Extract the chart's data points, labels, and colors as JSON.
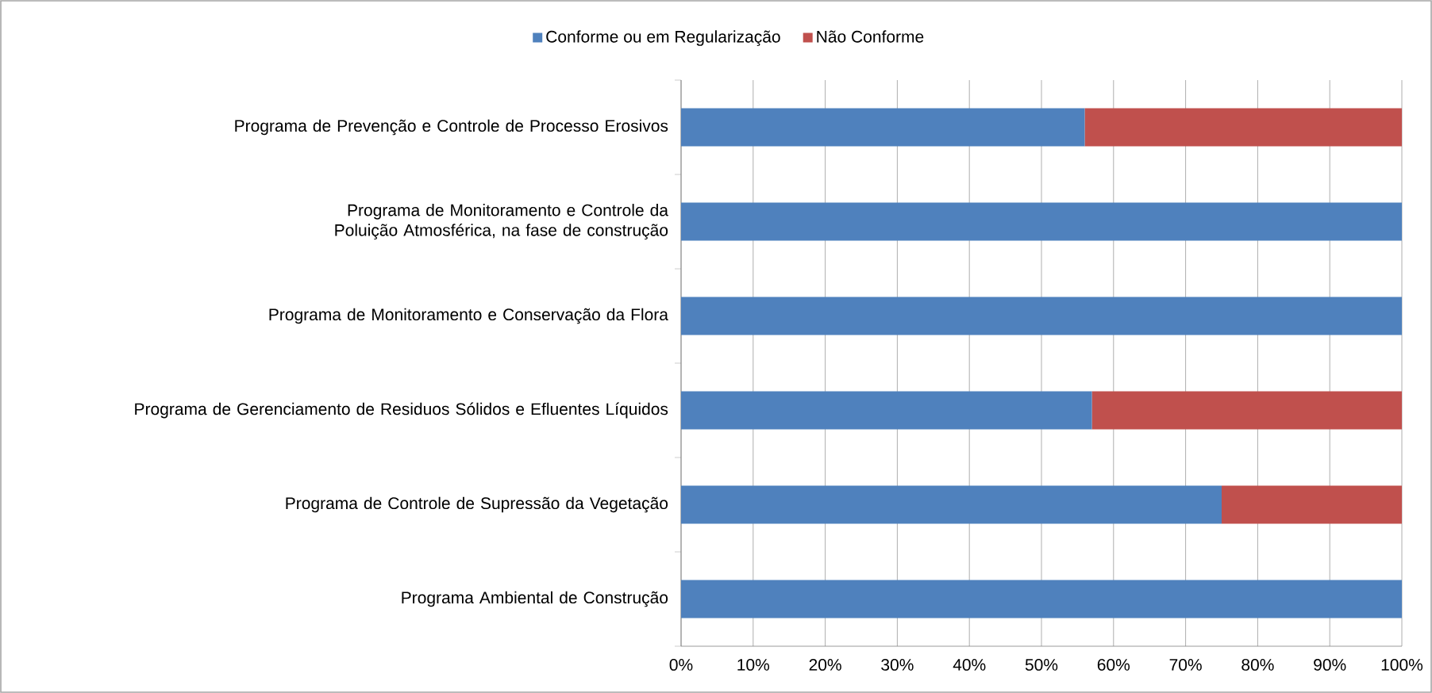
{
  "chart_data": {
    "type": "bar",
    "orientation": "horizontal",
    "stacked": true,
    "categories": [
      "Programa de Prevenção e Controle de Processo Erosivos",
      "Programa de Monitoramento e Controle da Poluição Atmosférica, na fase de construção",
      "Programa de Monitoramento e Conservação da Flora",
      "Programa de Gerenciamento de Residuos Sólidos e Efluentes Líquidos",
      "Programa de Controle de Supressão da Vegetação",
      "Programa Ambiental de Construção"
    ],
    "series": [
      {
        "name": "Conforme ou em Regularização",
        "color": "#4f81bd",
        "values": [
          56,
          100,
          100,
          57,
          75,
          100
        ]
      },
      {
        "name": "Não Conforme",
        "color": "#c0504d",
        "values": [
          44,
          0,
          0,
          43,
          25,
          0
        ]
      }
    ],
    "xlim": [
      0,
      100
    ],
    "xticks": [
      {
        "value": 0,
        "label": "0%"
      },
      {
        "value": 10,
        "label": "10%"
      },
      {
        "value": 20,
        "label": "20%"
      },
      {
        "value": 30,
        "label": "30%"
      },
      {
        "value": 40,
        "label": "40%"
      },
      {
        "value": 50,
        "label": "50%"
      },
      {
        "value": 60,
        "label": "60%"
      },
      {
        "value": 70,
        "label": "70%"
      },
      {
        "value": 80,
        "label": "80%"
      },
      {
        "value": 90,
        "label": "90%"
      },
      {
        "value": 100,
        "label": "100%"
      }
    ],
    "grid": "x",
    "legend": "top"
  }
}
